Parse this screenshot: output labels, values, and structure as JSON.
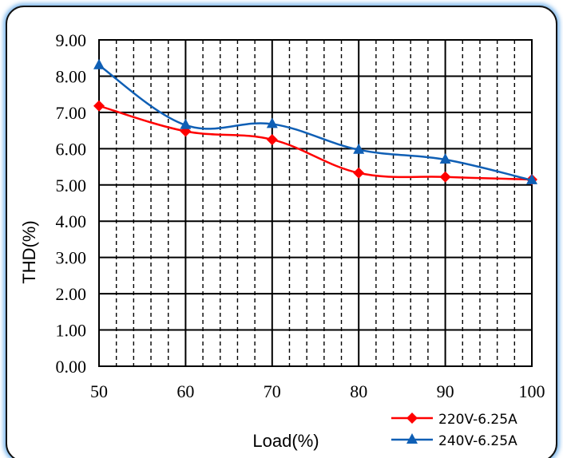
{
  "chart_data": {
    "type": "line",
    "xlabel": "Load(%)",
    "ylabel": "THD(%)",
    "xlim": [
      50,
      100
    ],
    "ylim": [
      0,
      9
    ],
    "x_ticks": [
      "50",
      "60",
      "70",
      "80",
      "90",
      "100"
    ],
    "y_ticks": [
      "0.00",
      "1.00",
      "2.00",
      "3.00",
      "4.00",
      "5.00",
      "6.00",
      "7.00",
      "8.00",
      "9.00"
    ],
    "x_tick_values": [
      50,
      60,
      70,
      80,
      90,
      100
    ],
    "y_tick_values": [
      0,
      1,
      2,
      3,
      4,
      5,
      6,
      7,
      8,
      9
    ],
    "x_minor_step": 2,
    "grid": true,
    "legend_position": "bottom-right",
    "series": [
      {
        "name": "220V-6.25A",
        "color": "#ff0000",
        "marker": "diamond",
        "x": [
          50,
          60,
          70,
          80,
          90,
          100
        ],
        "values": [
          7.18,
          6.48,
          6.25,
          5.33,
          5.22,
          5.15
        ]
      },
      {
        "name": "240V-6.25A",
        "color": "#0f5fb5",
        "marker": "triangle",
        "x": [
          50,
          60,
          70,
          80,
          90,
          100
        ],
        "values": [
          8.3,
          6.65,
          6.68,
          5.97,
          5.7,
          5.13
        ]
      }
    ]
  }
}
